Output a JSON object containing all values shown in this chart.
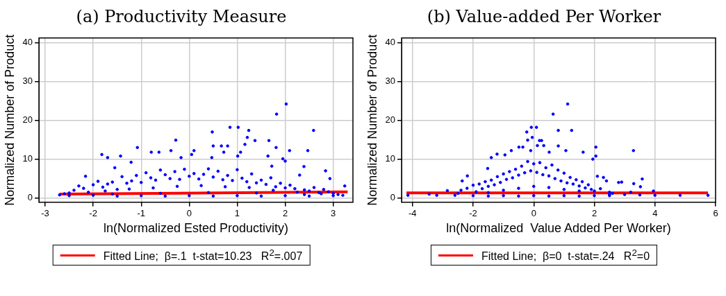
{
  "chart_data": [
    {
      "type": "scatter",
      "title": "(a) Productivity Measure",
      "xlabel": "ln(Normalized Ested Productivity)",
      "ylabel": "Normalized Number of Product",
      "xlim": [
        -3.13,
        3.41
      ],
      "ylim": [
        -1.1,
        41.2
      ],
      "xticks": [
        -3,
        -2,
        -1,
        0,
        1,
        2,
        3
      ],
      "yticks": [
        0,
        10,
        20,
        30,
        40
      ],
      "grid": true,
      "legend": "bottom",
      "marker": "circle",
      "series": [
        {
          "color": "#0000ff",
          "x": [
            2.02,
            1.82,
            0.85,
            1.02,
            1.24,
            2.59,
            0.48,
            -0.28,
            1.37,
            1.66,
            1.21,
            0.5,
            0.67,
            0.8,
            -1.08,
            1.81,
            1.16,
            0.1,
            -0.38,
            2.09,
            2.47,
            -0.79,
            -0.63,
            1.07,
            0.72,
            -1.82,
            0.05,
            -1.7,
            -1.43,
            1.64,
            1.01,
            -0.17,
            0.47,
            -1.21,
            1.95,
            2.0,
            -1.55,
            2.84,
            2.39,
            1.72,
            2.93,
            3.24,
            -2.16,
            -2.7,
            -2.6,
            -2.5,
            -2.4,
            -2.3,
            -2.2,
            -2.1,
            -2.0,
            -1.9,
            -1.8,
            -1.7,
            -1.6,
            -1.5,
            -1.4,
            -1.3,
            -1.2,
            -1.1,
            -1.0,
            -0.9,
            -0.8,
            -0.7,
            -0.6,
            -0.5,
            -0.4,
            -0.3,
            -0.2,
            -0.1,
            0.0,
            0.1,
            0.2,
            0.3,
            0.4,
            0.5,
            0.6,
            0.7,
            0.8,
            0.9,
            1.0,
            1.1,
            1.2,
            1.3,
            1.4,
            1.5,
            1.6,
            1.7,
            1.8,
            1.9,
            2.0,
            2.1,
            2.2,
            2.3,
            2.4,
            2.5,
            2.6,
            2.7,
            2.8,
            2.9,
            3.0,
            3.1,
            3.2,
            -2.5,
            -2.0,
            -1.5,
            -1.0,
            -0.5,
            0,
            0.5,
            1.0,
            1.5,
            2.0,
            2.5,
            3.0,
            -1.75,
            -1.25,
            -0.75,
            -0.25,
            0.25,
            0.75,
            1.25,
            1.75,
            2.25,
            2.75,
            -0.6,
            0.4,
            1.4,
            -1.6,
            2.4
          ],
          "values": [
            24.2,
            21.6,
            18.2,
            18.2,
            17.4,
            17.4,
            17.0,
            14.9,
            14.8,
            14.8,
            15.6,
            13.4,
            13.4,
            13.4,
            13.0,
            13.0,
            13.8,
            12.2,
            12.2,
            12.2,
            12.2,
            11.8,
            11.8,
            11.8,
            11.8,
            11.2,
            11.2,
            10.4,
            10.8,
            10.8,
            10.8,
            10.4,
            10.4,
            9.2,
            10.1,
            9.5,
            7.8,
            7.0,
            8.1,
            8.2,
            5.0,
            3.1,
            5.6,
            0.8,
            1.1,
            1.3,
            2.0,
            3.1,
            2.5,
            1.5,
            3.4,
            4.3,
            2.8,
            3.6,
            4.1,
            2.2,
            5.5,
            3.8,
            4.4,
            5.8,
            4.0,
            6.5,
            5.2,
            4.6,
            7.2,
            6.0,
            5.0,
            6.8,
            4.8,
            7.4,
            5.6,
            6.3,
            4.9,
            6.1,
            7.5,
            5.4,
            6.9,
            4.7,
            5.8,
            4.5,
            7.3,
            5.1,
            4.2,
            6.2,
            3.9,
            4.6,
            3.5,
            5.2,
            2.9,
            3.8,
            2.6,
            3.3,
            2.4,
            5.9,
            2.1,
            1.8,
            2.7,
            1.4,
            2.2,
            1.6,
            1.2,
            0.9,
            0.7,
            0.6,
            0.7,
            0.5,
            0.6,
            0.5,
            0.6,
            0.5,
            0.6,
            0.5,
            0.6,
            0.5,
            0.6,
            1.8,
            2.3,
            2.6,
            3.0,
            3.2,
            2.9,
            2.7,
            2.0,
            1.5,
            1.1,
            1.2,
            1.4,
            1.3,
            1.0,
            0.9
          ]
        },
        {
          "type": "line",
          "name": "Fitted Line;  β=.1  t-stat=10.23   R$^{2}$=.007",
          "color": "#ff0000",
          "marker": "none",
          "x": [
            -2.7,
            3.3
          ],
          "values": [
            1.0,
            1.6
          ]
        }
      ]
    },
    {
      "type": "scatter",
      "title": "(b) Value-added Per Worker",
      "xlabel": "ln(Normalized  Value Added Per Worker)",
      "ylabel": "Normalized Number of Product",
      "xlim": [
        -4.36,
        6.0
      ],
      "ylim": [
        -1.1,
        41.2
      ],
      "xticks": [
        -4,
        -2,
        0,
        2,
        4,
        6
      ],
      "yticks": [
        0,
        10,
        20,
        30,
        40
      ],
      "grid": true,
      "legend": "bottom",
      "marker": "circle",
      "series": [
        {
          "color": "#0000ff",
          "x": [
            1.12,
            0.64,
            -0.08,
            0.09,
            0.81,
            1.25,
            -0.23,
            -0.05,
            -0.2,
            0.19,
            0.26,
            -0.49,
            -0.36,
            0.12,
            0.33,
            0.81,
            2.05,
            3.29,
            -0.74,
            -0.1,
            1.06,
            1.63,
            0.51,
            -1.21,
            -0.95,
            2.05,
            -1.4,
            1.95,
            -1.52,
            3.58,
            3.52,
            -2.19,
            -2.36,
            -4.15,
            -3.45,
            -3.2,
            -2.85,
            4.83,
            5.75,
            4.0,
            3.95,
            3.3,
            -2.6,
            -2.5,
            -2.4,
            -2.2,
            -2.0,
            -1.9,
            -1.8,
            -1.7,
            -1.6,
            -1.5,
            -1.4,
            -1.3,
            -1.2,
            -1.1,
            -1.0,
            -0.9,
            -0.8,
            -0.7,
            -0.6,
            -0.5,
            -0.4,
            -0.3,
            -0.2,
            -0.1,
            0.0,
            0.1,
            0.2,
            0.3,
            0.4,
            0.5,
            0.6,
            0.7,
            0.8,
            0.9,
            1.0,
            1.1,
            1.2,
            1.3,
            1.4,
            1.5,
            1.6,
            1.7,
            1.8,
            1.9,
            2.0,
            2.1,
            2.2,
            2.3,
            2.4,
            2.5,
            2.6,
            2.8,
            2.9,
            3.0,
            3.2,
            3.5,
            -2.0,
            -1.5,
            -1.0,
            -0.5,
            0,
            0.5,
            1.0,
            1.5,
            2.0,
            2.5,
            -1.0,
            -0.5,
            0,
            0.5,
            1.0,
            1.5,
            -1.5,
            2.5
          ],
          "values": [
            24.2,
            21.6,
            18.2,
            18.2,
            17.4,
            17.4,
            17.0,
            15.6,
            14.9,
            14.8,
            14.8,
            13.1,
            13.1,
            13.5,
            13.5,
            13.4,
            13.1,
            12.2,
            12.2,
            12.2,
            12.2,
            11.8,
            11.8,
            11.3,
            11.1,
            10.8,
            10.4,
            10.0,
            7.6,
            4.9,
            2.9,
            5.7,
            4.4,
            0.7,
            1.0,
            0.7,
            1.9,
            0.7,
            0.7,
            0.7,
            1.8,
            3.7,
            0.7,
            1.2,
            2.0,
            2.5,
            3.3,
            1.6,
            3.6,
            2.4,
            4.2,
            3.0,
            4.6,
            3.4,
            5.5,
            4.0,
            6.2,
            4.8,
            6.8,
            5.2,
            7.4,
            5.9,
            8.2,
            6.5,
            9.4,
            7.0,
            8.8,
            6.6,
            9.1,
            6.0,
            7.8,
            5.7,
            8.5,
            5.0,
            7.2,
            4.4,
            6.4,
            3.9,
            5.3,
            3.6,
            4.7,
            3.1,
            4.2,
            2.6,
            3.4,
            2.2,
            1.8,
            5.6,
            2.4,
            5.3,
            4.4,
            1.5,
            1.2,
            4.0,
            4.1,
            0.9,
            1.5,
            0.8,
            0.6,
            0.5,
            0.6,
            0.5,
            0.6,
            0.5,
            0.6,
            0.5,
            0.6,
            0.6,
            2.0,
            2.5,
            3.0,
            2.7,
            2.2,
            1.8,
            1.4,
            0.9
          ]
        },
        {
          "type": "line",
          "name": "Fitted Line;  β=0  t-stat=.24   R$^{2}$=0",
          "color": "#ff0000",
          "marker": "none",
          "x": [
            -4.2,
            5.75
          ],
          "values": [
            1.3,
            1.3
          ]
        }
      ]
    }
  ]
}
